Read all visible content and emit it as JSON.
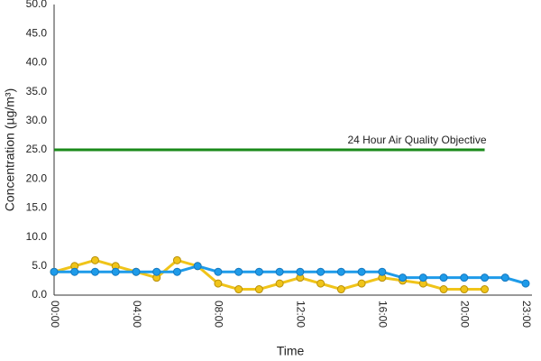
{
  "chart_data": {
    "type": "line",
    "y_label": "Concentration (µg/m³)",
    "x_label": "Time",
    "categories": [
      "00:00",
      null,
      null,
      null,
      "04:00",
      null,
      null,
      null,
      "08:00",
      null,
      null,
      null,
      "12:00",
      null,
      null,
      null,
      "16:00",
      null,
      null,
      null,
      "20:00",
      null,
      null,
      "23:00"
    ],
    "series": [
      {
        "color": "#f0c419",
        "marker": true,
        "values": [
          4,
          5,
          6,
          5,
          4,
          3,
          6,
          5,
          2,
          1,
          1,
          2,
          3,
          2,
          1,
          2,
          3,
          2.5,
          2,
          1,
          1,
          1,
          null,
          null
        ]
      },
      {
        "color": "#1e9be9",
        "marker": true,
        "values": [
          4,
          4,
          4,
          4,
          4,
          4,
          4,
          5,
          4,
          4,
          4,
          4,
          4,
          4,
          4,
          4,
          4,
          3,
          3,
          3,
          3,
          3,
          3,
          2
        ]
      },
      {
        "name": "24 Hour Air Quality Objective",
        "color": "#1a8a1a",
        "marker": false,
        "values": [
          25,
          25,
          25,
          25,
          25,
          25,
          25,
          25,
          25,
          25,
          25,
          25,
          25,
          25,
          25,
          25,
          25,
          25,
          25,
          25,
          25,
          25,
          null,
          null
        ]
      }
    ],
    "ylim": [
      0,
      50
    ],
    "yticks": [
      {
        "value": 0,
        "label": "0.0"
      },
      {
        "value": 5,
        "label": "5.0"
      },
      {
        "value": 10,
        "label": "10.0"
      },
      {
        "value": 15,
        "label": "15.0"
      },
      {
        "value": 20,
        "label": "20.0"
      },
      {
        "value": 25,
        "label": "25.0"
      },
      {
        "value": 30,
        "label": "30.0"
      },
      {
        "value": 35,
        "label": "35.0"
      },
      {
        "value": 40,
        "label": "40.0"
      },
      {
        "value": 45,
        "label": "45.0"
      },
      {
        "value": 50,
        "label": "50.0"
      }
    ],
    "grid": false
  }
}
